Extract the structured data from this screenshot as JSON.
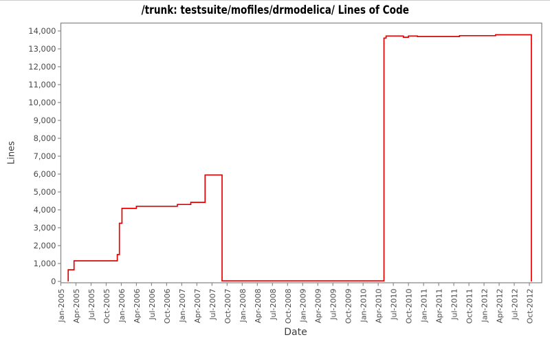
{
  "page": {
    "background": "#ffffff"
  },
  "chart_data": {
    "type": "line",
    "style": "step",
    "title": "/trunk: testsuite/mofiles/drmodelica/ Lines of Code",
    "xlabel": "Date",
    "ylabel": "Lines",
    "line_color": "#e60000",
    "frame_color": "#8a8a8a",
    "tick_color": "#8a8a8a",
    "tick_label_color": "#4a4a4a",
    "axis_label_color": "#3d3d3d",
    "title_color": "#000000",
    "grid": false,
    "legend": "none",
    "ylim": [
      0,
      14000
    ],
    "y_ticks": [
      0,
      1000,
      2000,
      3000,
      4000,
      5000,
      6000,
      7000,
      8000,
      9000,
      10000,
      11000,
      12000,
      13000,
      14000
    ],
    "x_ticks": [
      "Jan-2005",
      "Apr-2005",
      "Jul-2005",
      "Oct-2005",
      "Jan-2006",
      "Apr-2006",
      "Jul-2006",
      "Oct-2006",
      "Jan-2007",
      "Apr-2007",
      "Jul-2007",
      "Oct-2007",
      "Jan-2008",
      "Apr-2008",
      "Jul-2008",
      "Oct-2008",
      "Jan-2009",
      "Apr-2009",
      "Jul-2009",
      "Oct-2009",
      "Jan-2010",
      "Apr-2010",
      "Jul-2010",
      "Oct-2010",
      "Jan-2011",
      "Apr-2011",
      "Jul-2011",
      "Oct-2011",
      "Jan-2012",
      "Apr-2012",
      "Jul-2012",
      "Oct-2012"
    ],
    "months_per_tick": 3,
    "series": [
      {
        "name": "Lines of Code",
        "points": [
          [
            "2005-02-15",
            0
          ],
          [
            "2005-02-15",
            650
          ],
          [
            "2005-03-20",
            1150
          ],
          [
            "2005-12-07",
            1500
          ],
          [
            "2005-12-20",
            3250
          ],
          [
            "2006-01-05",
            4080
          ],
          [
            "2006-04-01",
            4200
          ],
          [
            "2006-12-05",
            4300
          ],
          [
            "2007-02-25",
            4420
          ],
          [
            "2007-05-20",
            5950
          ],
          [
            "2007-09-01",
            30
          ],
          [
            "2010-05-05",
            13600
          ],
          [
            "2010-05-18",
            13720
          ],
          [
            "2010-09-01",
            13650
          ],
          [
            "2010-10-01",
            13720
          ],
          [
            "2010-11-25",
            13690
          ],
          [
            "2011-08-05",
            13740
          ],
          [
            "2012-03-10",
            13790
          ],
          [
            "2012-10-13",
            0
          ]
        ]
      }
    ]
  }
}
